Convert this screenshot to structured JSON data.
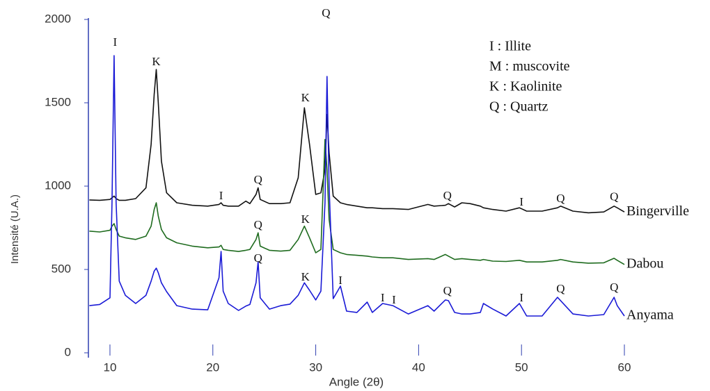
{
  "chart_data": {
    "type": "line",
    "xlabel": "Angle (2θ)",
    "ylabel": "Intensité (U.A.)",
    "xlim": [
      8,
      60
    ],
    "ylim": [
      0,
      2000
    ],
    "xticks": [
      10,
      20,
      30,
      40,
      50,
      60
    ],
    "yticks": [
      0,
      500,
      1000,
      1500,
      2000
    ],
    "x": [
      8,
      9,
      10,
      10.2,
      10.4,
      10.6,
      10.9,
      11.5,
      12.5,
      13.5,
      14,
      14.3,
      14.5,
      14.7,
      15,
      15.5,
      16.5,
      18,
      19.5,
      20.6,
      20.8,
      21,
      21.5,
      22.5,
      23.2,
      23.6,
      24.2,
      24.4,
      24.6,
      25.5,
      26.6,
      27.5,
      28.3,
      28.9,
      29.4,
      30,
      30.5,
      30.9,
      31.1,
      31.3,
      31.7,
      32.4,
      33,
      34,
      35,
      35.5,
      36.5,
      37.5,
      39,
      40.9,
      41.5,
      42.6,
      42.9,
      43.5,
      44.2,
      45,
      46,
      46.3,
      47.2,
      48.5,
      49.8,
      50.5,
      52,
      53.5,
      53.8,
      55,
      56.5,
      58,
      59,
      59.3,
      60
    ],
    "series": [
      {
        "name": "Bingerville",
        "color": "#111111",
        "values": [
          917,
          915,
          920,
          930,
          940,
          925,
          915,
          915,
          925,
          990,
          1250,
          1550,
          1700,
          1500,
          1150,
          960,
          900,
          885,
          880,
          890,
          900,
          885,
          880,
          880,
          910,
          895,
          950,
          990,
          920,
          895,
          895,
          900,
          1050,
          1470,
          1250,
          950,
          960,
          1100,
          1430,
          1200,
          940,
          900,
          890,
          880,
          870,
          870,
          865,
          865,
          860,
          890,
          880,
          885,
          895,
          875,
          900,
          895,
          880,
          870,
          860,
          850,
          870,
          850,
          850,
          870,
          880,
          850,
          840,
          845,
          880,
          870,
          845
        ]
      },
      {
        "name": "Dabou",
        "color": "#1e6b1e",
        "values": [
          730,
          725,
          735,
          760,
          775,
          740,
          700,
          690,
          680,
          700,
          760,
          860,
          900,
          820,
          740,
          690,
          660,
          640,
          630,
          635,
          645,
          620,
          615,
          608,
          615,
          620,
          680,
          720,
          640,
          615,
          610,
          615,
          680,
          760,
          690,
          600,
          620,
          1280,
          1100,
          800,
          620,
          600,
          590,
          585,
          580,
          575,
          570,
          570,
          560,
          565,
          560,
          590,
          580,
          560,
          565,
          560,
          555,
          560,
          550,
          548,
          555,
          545,
          545,
          555,
          560,
          545,
          538,
          540,
          567,
          555,
          530
        ]
      },
      {
        "name": "Anyama",
        "color": "#1a1ad6",
        "values": [
          283,
          290,
          330,
          900,
          1783,
          900,
          430,
          345,
          296,
          345,
          430,
          490,
          508,
          480,
          420,
          367,
          283,
          262,
          258,
          450,
          608,
          370,
          296,
          254,
          280,
          290,
          420,
          546,
          330,
          262,
          283,
          292,
          345,
          420,
          375,
          317,
          370,
          900,
          1658,
          1000,
          325,
          400,
          250,
          242,
          304,
          242,
          296,
          283,
          233,
          283,
          250,
          317,
          313,
          242,
          233,
          233,
          242,
          296,
          263,
          221,
          296,
          221,
          221,
          333,
          313,
          233,
          221,
          229,
          333,
          283,
          221
        ]
      }
    ],
    "annotations": [
      {
        "text": "I",
        "x": 10.5,
        "y": 1858
      },
      {
        "text": "K",
        "x": 14.5,
        "y": 1742
      },
      {
        "text": "Q",
        "x": 31,
        "y": 2033
      },
      {
        "text": "K",
        "x": 29,
        "y": 1525
      },
      {
        "text": "I",
        "x": 20.8,
        "y": 937
      },
      {
        "text": "Q",
        "x": 24.4,
        "y": 1033
      },
      {
        "text": "Q",
        "x": 42.8,
        "y": 937
      },
      {
        "text": "I",
        "x": 50,
        "y": 900
      },
      {
        "text": "Q",
        "x": 53.8,
        "y": 920
      },
      {
        "text": "Q",
        "x": 59,
        "y": 930
      },
      {
        "text": "Q",
        "x": 24.4,
        "y": 762
      },
      {
        "text": "K",
        "x": 29,
        "y": 796
      },
      {
        "text": "Q",
        "x": 24.4,
        "y": 562
      },
      {
        "text": "K",
        "x": 29,
        "y": 450
      },
      {
        "text": "I",
        "x": 32.4,
        "y": 429
      },
      {
        "text": "I",
        "x": 36.5,
        "y": 325
      },
      {
        "text": "I",
        "x": 37.6,
        "y": 312
      },
      {
        "text": "Q",
        "x": 42.8,
        "y": 367
      },
      {
        "text": "I",
        "x": 50,
        "y": 325
      },
      {
        "text": "Q",
        "x": 53.8,
        "y": 379
      },
      {
        "text": "Q",
        "x": 59,
        "y": 387
      }
    ],
    "key": [
      "I : Illite",
      "M : muscovite",
      "K : Kaolinite",
      "Q : Quartz"
    ]
  }
}
